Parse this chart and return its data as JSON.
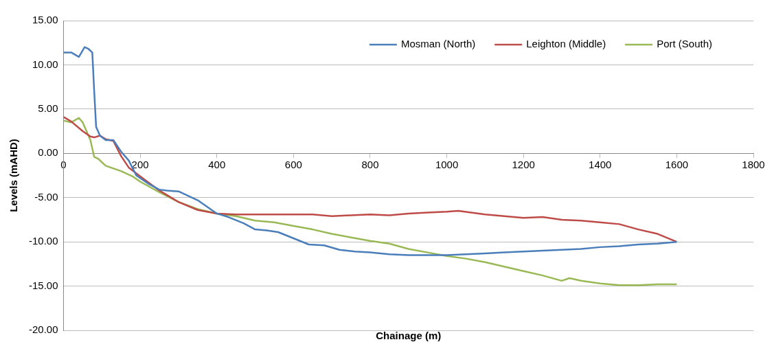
{
  "chart_data": {
    "type": "line",
    "xlabel": "Chainage (m)",
    "ylabel": "Levels (mAHD)",
    "xlim": [
      0,
      1800
    ],
    "xticks": [
      0,
      200,
      400,
      600,
      800,
      1000,
      1200,
      1400,
      1600,
      1800
    ],
    "ylim": [
      -20,
      15
    ],
    "yticks": [
      {
        "value": -20,
        "label": "-20.00"
      },
      {
        "value": -15,
        "label": "-15.00"
      },
      {
        "value": -10,
        "label": "-10.00"
      },
      {
        "value": -5,
        "label": "-5.00"
      },
      {
        "value": 0,
        "label": "0.00"
      },
      {
        "value": 5,
        "label": "5.00"
      },
      {
        "value": 10,
        "label": "10.00"
      },
      {
        "value": 15,
        "label": "15.00"
      }
    ],
    "grid": "y",
    "legend": "top right",
    "marker": "none",
    "line_style": "solid",
    "series": [
      {
        "name": "Mosman (North)",
        "color": "#4a7ebb",
        "x": [
          0,
          20,
          40,
          55,
          65,
          75,
          80,
          85,
          95,
          110,
          130,
          150,
          170,
          190,
          220,
          250,
          270,
          300,
          350,
          400,
          430,
          470,
          500,
          530,
          560,
          600,
          640,
          680,
          720,
          760,
          800,
          850,
          900,
          950,
          1000,
          1050,
          1100,
          1150,
          1200,
          1250,
          1300,
          1350,
          1400,
          1450,
          1500,
          1550,
          1600
        ],
        "values": [
          11.4,
          11.4,
          10.9,
          12.0,
          11.8,
          11.4,
          7,
          3,
          2.0,
          1.5,
          1.5,
          0.2,
          -0.8,
          -2.5,
          -3.4,
          -4.1,
          -4.2,
          -4.3,
          -5.3,
          -6.8,
          -7.2,
          -7.9,
          -8.6,
          -8.7,
          -8.9,
          -9.6,
          -10.3,
          -10.4,
          -10.9,
          -11.1,
          -11.2,
          -11.4,
          -11.5,
          -11.5,
          -11.5,
          -11.4,
          -11.3,
          -11.2,
          -11.1,
          -11.0,
          -10.9,
          -10.8,
          -10.6,
          -10.5,
          -10.3,
          -10.2,
          -10.0
        ]
      },
      {
        "name": "Leighton (Middle)",
        "color": "#be4b48",
        "x": [
          0,
          20,
          50,
          70,
          80,
          95,
          110,
          130,
          150,
          170,
          200,
          250,
          300,
          350,
          400,
          450,
          500,
          600,
          650,
          700,
          750,
          800,
          850,
          900,
          950,
          1000,
          1030,
          1100,
          1150,
          1200,
          1250,
          1300,
          1350,
          1400,
          1450,
          1500,
          1550,
          1600
        ],
        "values": [
          4.1,
          3.6,
          2.5,
          1.9,
          1.8,
          2.0,
          1.6,
          1.4,
          -0.3,
          -1.6,
          -2.6,
          -4.2,
          -5.5,
          -6.4,
          -6.8,
          -6.9,
          -6.9,
          -6.9,
          -6.9,
          -7.1,
          -7.0,
          -6.9,
          -7.0,
          -6.8,
          -6.7,
          -6.6,
          -6.5,
          -6.9,
          -7.1,
          -7.3,
          -7.2,
          -7.5,
          -7.6,
          -7.8,
          -8.0,
          -8.6,
          -9.1,
          -10.0
        ]
      },
      {
        "name": "Port (South)",
        "color": "#98b954",
        "x": [
          0,
          20,
          40,
          50,
          70,
          80,
          90,
          110,
          150,
          180,
          200,
          250,
          300,
          350,
          400,
          450,
          500,
          550,
          600,
          650,
          700,
          750,
          800,
          850,
          900,
          950,
          1000,
          1050,
          1100,
          1150,
          1200,
          1250,
          1300,
          1320,
          1350,
          1400,
          1450,
          1500,
          1550,
          1600
        ],
        "values": [
          3.7,
          3.5,
          4.0,
          3.5,
          1.5,
          -0.4,
          -0.6,
          -1.4,
          -2.0,
          -2.6,
          -3.2,
          -4.4,
          -5.5,
          -6.3,
          -6.8,
          -7.1,
          -7.6,
          -7.8,
          -8.2,
          -8.6,
          -9.1,
          -9.5,
          -9.9,
          -10.2,
          -10.8,
          -11.2,
          -11.6,
          -11.9,
          -12.3,
          -12.8,
          -13.3,
          -13.8,
          -14.4,
          -14.1,
          -14.4,
          -14.7,
          -14.9,
          -14.9,
          -14.8,
          -14.8
        ]
      }
    ]
  }
}
